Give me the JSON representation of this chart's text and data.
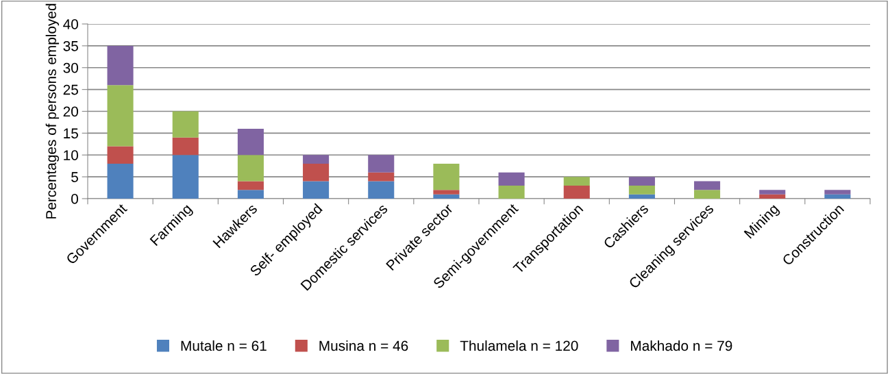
{
  "chart_data": {
    "type": "bar",
    "stacked": true,
    "ylabel": "Percentages of persons employed",
    "categories": [
      "Government",
      "Farming",
      "Hawkers",
      "Self- employed",
      "Domestic services",
      "Private sector",
      "Semi-government",
      "Transportation",
      "Cashiers",
      "Cleaning services",
      "Mining",
      "Construction"
    ],
    "series": [
      {
        "name": "Mutale n = 61",
        "color": "#4f81bd",
        "values": [
          8,
          10,
          2,
          4,
          4,
          1,
          0,
          0,
          1,
          0,
          0,
          1
        ]
      },
      {
        "name": "Musina n = 46",
        "color": "#c0504d",
        "values": [
          4,
          4,
          2,
          4,
          2,
          1,
          0,
          3,
          0,
          0,
          1,
          0
        ]
      },
      {
        "name": "Thulamela n = 120",
        "color": "#9bbb59",
        "values": [
          14,
          6,
          6,
          0,
          0,
          6,
          3,
          2,
          2,
          2,
          0,
          0
        ]
      },
      {
        "name": "Makhado n = 79",
        "color": "#8064a2",
        "values": [
          9,
          0,
          6,
          2,
          4,
          0,
          3,
          0,
          2,
          2,
          1,
          1
        ]
      }
    ],
    "ylim": [
      0,
      40
    ],
    "yticks": [
      0,
      5,
      10,
      15,
      20,
      25,
      30,
      35,
      40
    ],
    "grid": "y",
    "legend": "bottom"
  }
}
